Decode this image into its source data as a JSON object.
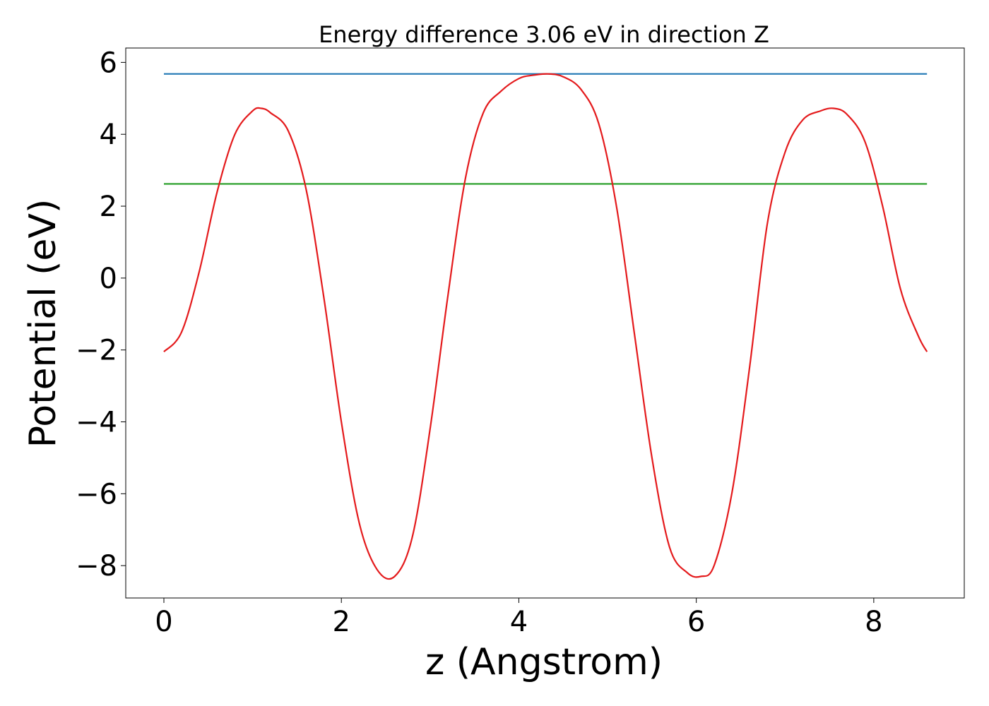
{
  "chart_data": {
    "type": "line",
    "title": "Energy difference 3.06 eV in direction Z",
    "xlabel": "z (Angstrom)",
    "ylabel": "Potential (eV)",
    "xlim": [
      -0.43,
      9.02
    ],
    "ylim": [
      -8.9,
      6.4
    ],
    "xticks": [
      0,
      2,
      4,
      6,
      8
    ],
    "yticks": [
      -8,
      -6,
      -4,
      -2,
      0,
      2,
      4,
      6
    ],
    "xtick_labels": [
      "0",
      "2",
      "4",
      "6",
      "8"
    ],
    "ytick_labels": [
      "−8",
      "−6",
      "−4",
      "−2",
      "0",
      "2",
      "4",
      "6"
    ],
    "grid": false,
    "series": [
      {
        "color": "#1f77b4",
        "x": [
          0,
          8.6
        ],
        "y": [
          5.68,
          5.68
        ]
      },
      {
        "color": "#2ca02c",
        "x": [
          0,
          8.6
        ],
        "y": [
          2.62,
          2.62
        ]
      },
      {
        "color": "#e41a1c",
        "x": [
          0,
          0.2,
          0.4,
          0.6,
          0.8,
          1.0,
          1.1,
          1.2,
          1.4,
          1.6,
          1.8,
          2.0,
          2.2,
          2.4,
          2.6,
          2.8,
          3.0,
          3.2,
          3.4,
          3.6,
          3.8,
          4.0,
          4.15,
          4.33,
          4.5,
          4.7,
          4.9,
          5.1,
          5.3,
          5.5,
          5.7,
          5.9,
          6.05,
          6.2,
          6.4,
          6.6,
          6.8,
          7.0,
          7.2,
          7.4,
          7.55,
          7.7,
          7.9,
          8.1,
          8.3,
          8.5,
          8.6
        ],
        "y": [
          -2.05,
          -1.5,
          0.2,
          2.4,
          4.0,
          4.65,
          4.72,
          4.6,
          4.1,
          2.5,
          -0.5,
          -4.0,
          -6.8,
          -8.1,
          -8.3,
          -7.2,
          -4.2,
          -0.5,
          2.8,
          4.6,
          5.2,
          5.55,
          5.64,
          5.68,
          5.6,
          5.25,
          4.3,
          2.0,
          -1.5,
          -5.0,
          -7.5,
          -8.2,
          -8.3,
          -8.0,
          -6.0,
          -2.5,
          1.5,
          3.5,
          4.4,
          4.65,
          4.72,
          4.55,
          3.8,
          2.0,
          -0.3,
          -1.6,
          -2.05
        ]
      }
    ]
  }
}
